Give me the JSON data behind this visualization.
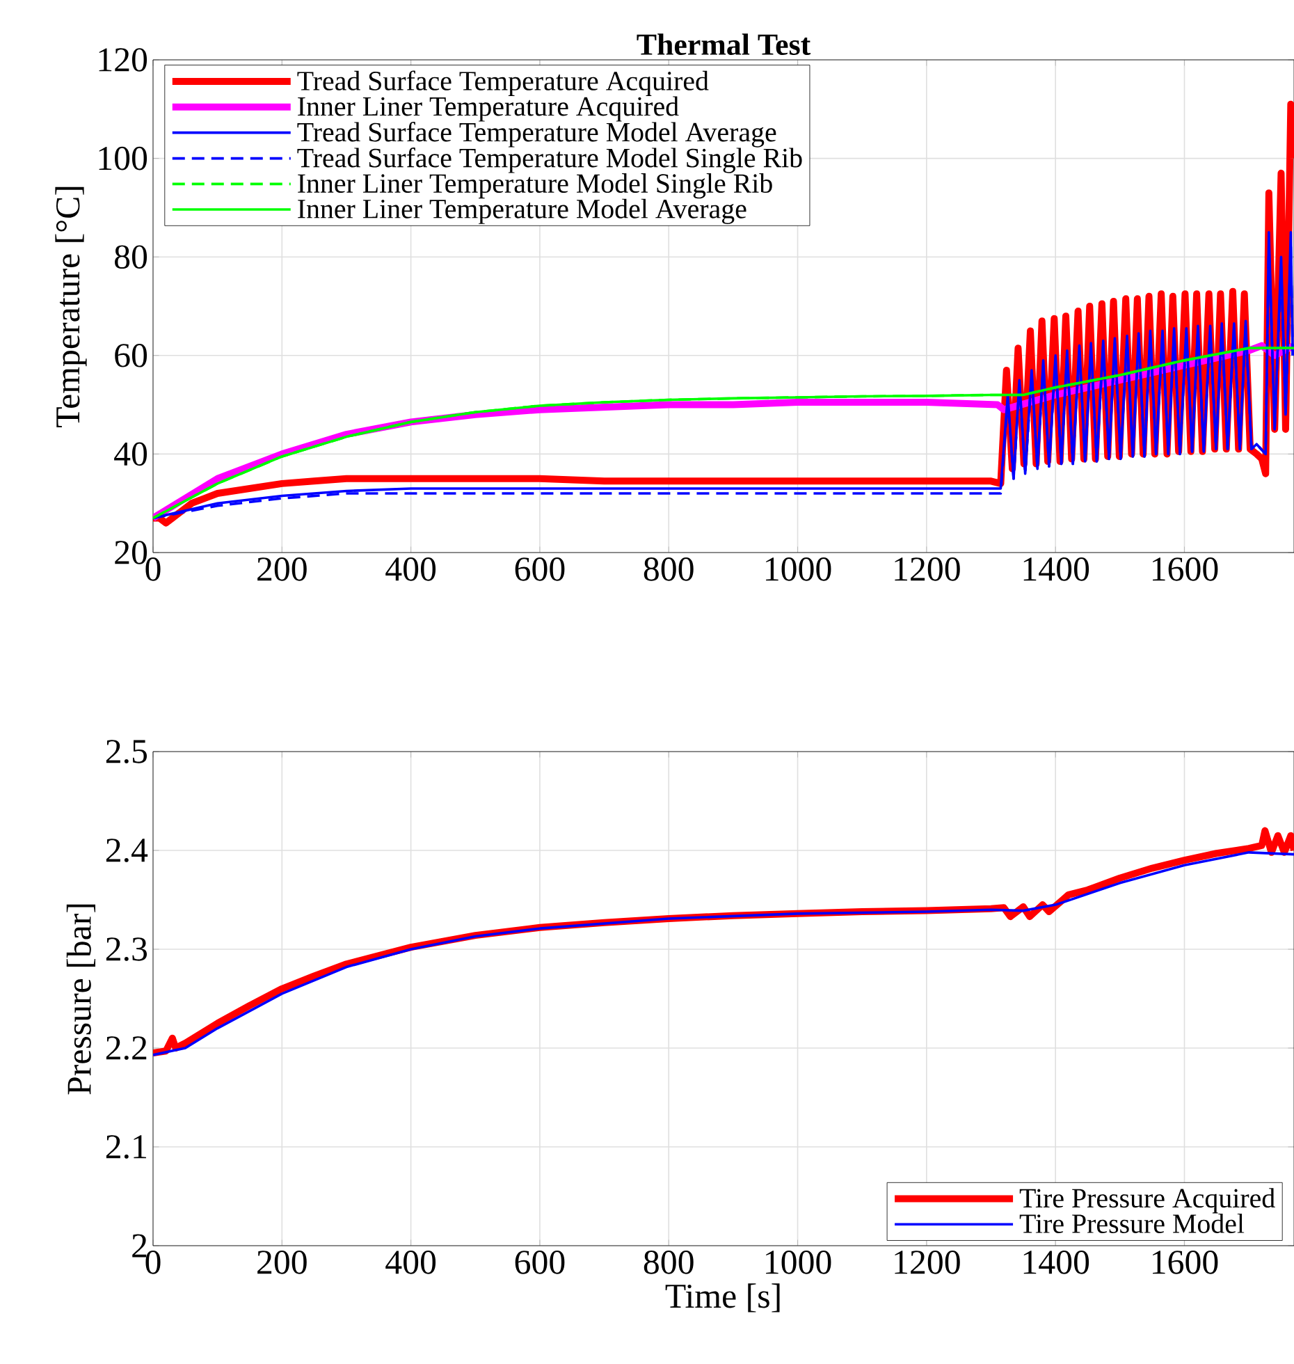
{
  "chart_data": [
    {
      "type": "line",
      "title": "Thermal Test",
      "ylabel": "Temperature [°C]",
      "xlim": [
        0,
        1770
      ],
      "ylim": [
        20,
        120
      ],
      "xticks": [
        0,
        200,
        400,
        600,
        800,
        1000,
        1200,
        1400,
        1600
      ],
      "yticks": [
        20,
        40,
        60,
        80,
        100,
        120
      ],
      "grid": true,
      "legend": "top left",
      "series": [
        {
          "name": "Tread Surface Temperature Acquired",
          "color": "#ff0000",
          "x": [
            0,
            10,
            20,
            30,
            40,
            60,
            80,
            100,
            150,
            200,
            250,
            300,
            400,
            500,
            600,
            700,
            800,
            900,
            1000,
            1100,
            1200,
            1300,
            1315,
            1324,
            1333,
            1342,
            1351,
            1361,
            1370,
            1379,
            1388,
            1398,
            1407,
            1416,
            1425,
            1435,
            1444,
            1453,
            1462,
            1472,
            1481,
            1490,
            1499,
            1509,
            1518,
            1527,
            1536,
            1545,
            1554,
            1564,
            1573,
            1582,
            1591,
            1601,
            1610,
            1619,
            1628,
            1638,
            1647,
            1656,
            1665,
            1675,
            1684,
            1693,
            1702,
            1712,
            1720,
            1726,
            1731,
            1740,
            1750,
            1757,
            1765,
            1768
          ],
          "values": [
            27,
            27,
            26,
            27,
            28,
            30,
            31,
            32,
            33,
            34,
            34.5,
            35,
            35,
            35,
            35,
            34.5,
            34.5,
            34.5,
            34.5,
            34.5,
            34.5,
            34.5,
            34,
            57,
            37,
            61.5,
            38,
            65,
            38,
            67,
            38.5,
            67.5,
            38.5,
            68,
            39,
            69,
            39,
            70,
            39,
            70.5,
            39.5,
            71,
            39.5,
            71.5,
            40,
            71.5,
            40,
            72,
            40,
            72.5,
            40,
            72,
            40.5,
            72.5,
            40.5,
            72.5,
            40.5,
            72.5,
            41,
            72.5,
            41,
            73,
            41,
            72.5,
            41,
            40,
            39,
            36,
            93,
            45,
            97,
            45,
            111,
            100
          ]
        },
        {
          "name": "Inner Liner Temperature Acquired",
          "color": "#ff00ff",
          "x": [
            0,
            50,
            100,
            200,
            300,
            400,
            500,
            600,
            700,
            800,
            900,
            1000,
            1100,
            1200,
            1310,
            1320,
            1400,
            1500,
            1600,
            1700,
            1720,
            1740,
            1770
          ],
          "values": [
            27,
            31,
            35,
            40,
            44,
            46.5,
            48,
            49,
            49.5,
            50,
            50,
            50.5,
            50.5,
            50.5,
            50,
            49,
            52,
            55,
            58,
            61,
            62,
            60,
            62
          ]
        },
        {
          "name": "Tread Surface Temperature Model Average",
          "color": "#0000ff",
          "x": [
            0,
            100,
            200,
            300,
            400,
            600,
            1000,
            1315,
            1326,
            1335,
            1344,
            1353,
            1363,
            1372,
            1381,
            1390,
            1400,
            1409,
            1418,
            1427,
            1437,
            1446,
            1455,
            1464,
            1474,
            1483,
            1492,
            1501,
            1511,
            1520,
            1529,
            1538,
            1547,
            1556,
            1566,
            1575,
            1584,
            1593,
            1603,
            1612,
            1621,
            1630,
            1640,
            1649,
            1658,
            1667,
            1677,
            1686,
            1695,
            1704,
            1712,
            1726,
            1731,
            1740,
            1750,
            1757,
            1765,
            1768
          ],
          "values": [
            27,
            30,
            31.5,
            32.5,
            33,
            33,
            33,
            33,
            52,
            35,
            55,
            36,
            57,
            37,
            59,
            37.5,
            60,
            38,
            61,
            38,
            62,
            38.5,
            62.5,
            38.5,
            63,
            39,
            63.5,
            39,
            64,
            39.5,
            64.5,
            39.5,
            65,
            40,
            65,
            40,
            65.5,
            40,
            65.5,
            40.5,
            66,
            40.5,
            66,
            41,
            66.5,
            41,
            66.5,
            41,
            67,
            41,
            42,
            40,
            85,
            45,
            80,
            48,
            85,
            60
          ]
        },
        {
          "name": "Tread Surface Temperature Model Single Rib",
          "color": "#0000ff",
          "line_style": "dashed",
          "x": [
            0,
            100,
            200,
            300,
            400,
            600,
            1000,
            1315,
            1326,
            1335,
            1344,
            1353,
            1363,
            1372,
            1381,
            1390,
            1400,
            1409,
            1418,
            1427,
            1437,
            1446,
            1455,
            1464,
            1474,
            1483,
            1492,
            1501,
            1511,
            1520,
            1529,
            1538,
            1547,
            1556,
            1566,
            1575,
            1584,
            1593,
            1603,
            1612,
            1621,
            1630,
            1640,
            1649,
            1658,
            1667,
            1677,
            1686,
            1695,
            1704,
            1712,
            1726,
            1731,
            1740,
            1750,
            1757,
            1765,
            1768
          ],
          "values": [
            27,
            29.5,
            31,
            32,
            32,
            32,
            32,
            32,
            51,
            35,
            54,
            36,
            56,
            37,
            58,
            37.5,
            59,
            38,
            60,
            38,
            61,
            38.5,
            61.5,
            38.5,
            62,
            39,
            62.5,
            39,
            63,
            39.5,
            63.5,
            39.5,
            64,
            40,
            64,
            40,
            64.5,
            40,
            64.5,
            40.5,
            65,
            40.5,
            65,
            41,
            65.5,
            41,
            65.5,
            41,
            66,
            41,
            42,
            40,
            83,
            45,
            78,
            48,
            83,
            60
          ]
        },
        {
          "name": "Inner Liner Temperature Model Single Rib",
          "color": "#00ff00",
          "line_style": "dashed",
          "x": [
            0,
            50,
            100,
            200,
            300,
            400,
            500,
            600,
            700,
            800,
            900,
            1000,
            1100,
            1200,
            1300,
            1350,
            1400,
            1500,
            1600,
            1700,
            1770
          ],
          "values": [
            27,
            30.5,
            34,
            39.5,
            43.5,
            46.5,
            48.5,
            49.8,
            50.5,
            51,
            51.3,
            51.5,
            51.7,
            51.8,
            52,
            52,
            53.5,
            56,
            59,
            61.5,
            61.5
          ]
        },
        {
          "name": "Inner Liner Temperature Model Average",
          "color": "#00ff00",
          "x": [
            0,
            50,
            100,
            200,
            300,
            400,
            500,
            600,
            700,
            800,
            900,
            1000,
            1100,
            1200,
            1300,
            1350,
            1400,
            1500,
            1600,
            1700,
            1770
          ],
          "values": [
            27,
            30.5,
            34,
            39.5,
            43.5,
            46.5,
            48.5,
            49.8,
            50.5,
            51,
            51.3,
            51.5,
            51.7,
            51.8,
            52,
            52,
            53.5,
            56,
            59,
            61.5,
            61.5
          ]
        }
      ]
    },
    {
      "type": "line",
      "xlabel": "Time [s]",
      "ylabel": "Pressure [bar]",
      "xlim": [
        0,
        1770
      ],
      "ylim": [
        2,
        2.5
      ],
      "xticks": [
        0,
        200,
        400,
        600,
        800,
        1000,
        1200,
        1400,
        1600
      ],
      "yticks": [
        2,
        2.1,
        2.2,
        2.3,
        2.4,
        2.5
      ],
      "grid": true,
      "legend": "bottom right",
      "series": [
        {
          "name": "Tire Pressure Acquired",
          "color": "#ff0000",
          "x": [
            0,
            20,
            30,
            35,
            50,
            100,
            150,
            200,
            250,
            300,
            400,
            500,
            600,
            700,
            800,
            900,
            1000,
            1100,
            1200,
            1300,
            1320,
            1330,
            1350,
            1360,
            1380,
            1390,
            1420,
            1450,
            1500,
            1550,
            1600,
            1650,
            1700,
            1720,
            1725,
            1735,
            1745,
            1755,
            1765,
            1770
          ],
          "values": [
            2.195,
            2.197,
            2.21,
            2.2,
            2.205,
            2.225,
            2.243,
            2.26,
            2.273,
            2.285,
            2.302,
            2.314,
            2.322,
            2.327,
            2.331,
            2.334,
            2.336,
            2.338,
            2.339,
            2.341,
            2.342,
            2.333,
            2.343,
            2.333,
            2.345,
            2.338,
            2.355,
            2.36,
            2.372,
            2.382,
            2.39,
            2.397,
            2.402,
            2.405,
            2.42,
            2.398,
            2.415,
            2.398,
            2.415,
            2.4
          ]
        },
        {
          "name": "Tire Pressure Model",
          "color": "#0000ff",
          "x": [
            0,
            50,
            100,
            200,
            300,
            400,
            500,
            600,
            800,
            1000,
            1200,
            1300,
            1350,
            1400,
            1500,
            1600,
            1700,
            1770
          ],
          "values": [
            2.193,
            2.2,
            2.22,
            2.255,
            2.282,
            2.3,
            2.313,
            2.321,
            2.331,
            2.336,
            2.338,
            2.34,
            2.339,
            2.345,
            2.367,
            2.385,
            2.398,
            2.396
          ]
        }
      ]
    }
  ]
}
